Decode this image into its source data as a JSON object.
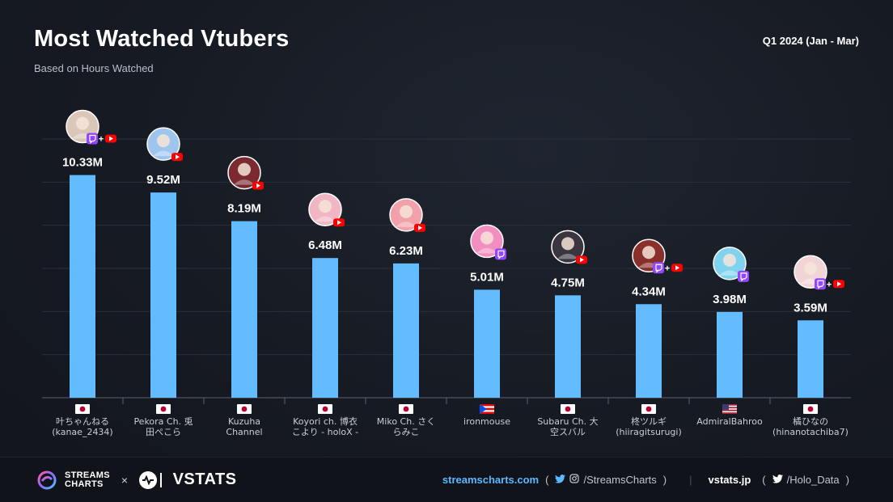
{
  "header": {
    "title": "Most Watched Vtubers",
    "subtitle": "Based on Hours Watched",
    "period": "Q1 2024 (Jan - Mar)"
  },
  "colors": {
    "bar": "#63bcff",
    "twitch": "#9146ff",
    "youtube": "#ff0000",
    "accent": "#5cb8ff"
  },
  "chart_data": {
    "type": "bar",
    "title": "Most Watched Vtubers",
    "subtitle": "Based on Hours Watched",
    "ylim": [
      0,
      12
    ],
    "grid": true,
    "categories": [
      {
        "l1": "叶ちゃんねる",
        "l2": "(kanae_2434)",
        "flag": "jp",
        "platforms": [
          "twitch",
          "youtube"
        ],
        "avatar": "#d9c7b8"
      },
      {
        "l1": "Pekora Ch. 兎",
        "l2": "田ぺこら",
        "flag": "jp",
        "platforms": [
          "youtube"
        ],
        "avatar": "#9ec5ee"
      },
      {
        "l1": "Kuzuha",
        "l2": "Channel",
        "flag": "jp",
        "platforms": [
          "youtube"
        ],
        "avatar": "#7a2a30"
      },
      {
        "l1": "Koyori ch. 博衣",
        "l2": "こより - holoX -",
        "flag": "jp",
        "platforms": [
          "youtube"
        ],
        "avatar": "#f0b6c4"
      },
      {
        "l1": "Miko Ch. さく",
        "l2": "らみこ",
        "flag": "jp",
        "platforms": [
          "youtube"
        ],
        "avatar": "#f2a1aa"
      },
      {
        "l1": "ironmouse",
        "l2": "",
        "flag": "pr",
        "platforms": [
          "twitch"
        ],
        "avatar": "#f38fc0"
      },
      {
        "l1": "Subaru Ch. 大",
        "l2": "空スバル",
        "flag": "jp",
        "platforms": [
          "youtube"
        ],
        "avatar": "#3b3540"
      },
      {
        "l1": "柊ツルギ",
        "l2": "(hiiragitsurugi)",
        "flag": "jp",
        "platforms": [
          "twitch",
          "youtube"
        ],
        "avatar": "#8a2f2b"
      },
      {
        "l1": "AdmiralBahroo",
        "l2": "",
        "flag": "us",
        "platforms": [
          "twitch"
        ],
        "avatar": "#7fd3ee"
      },
      {
        "l1": "橘ひなの",
        "l2": "(hinanotachiba7)",
        "flag": "jp",
        "platforms": [
          "twitch",
          "youtube"
        ],
        "avatar": "#f1d4d6"
      }
    ],
    "values": [
      10.33,
      9.52,
      8.19,
      6.48,
      6.23,
      5.01,
      4.75,
      4.34,
      3.98,
      3.59
    ],
    "value_labels": [
      "10.33M",
      "9.52M",
      "8.19M",
      "6.48M",
      "6.23M",
      "5.01M",
      "4.75M",
      "4.34M",
      "3.98M",
      "3.59M"
    ]
  },
  "footer": {
    "brand_line1": "STREAMS",
    "brand_line2": "CHARTS",
    "times": "×",
    "vstats_name": "VSTATS",
    "site1": "streamscharts.com",
    "handle1": "/StreamsCharts",
    "site2": "vstats.jp",
    "handle2": "/Holo_Data",
    "paren_open": "(",
    "paren_close": ")",
    "separator": "|",
    "twitter_icon": "twitter-icon",
    "instagram_icon": "instagram-icon"
  }
}
